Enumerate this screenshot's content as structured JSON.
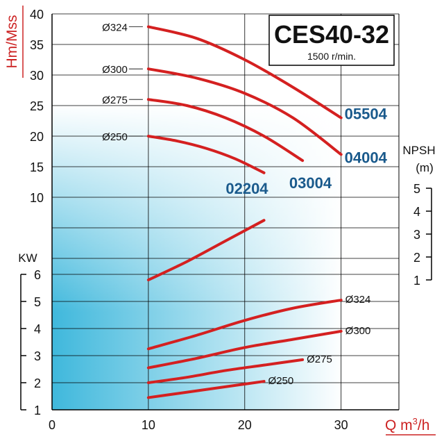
{
  "title_box": {
    "model": "CES40-32",
    "speed": "1500 r/min."
  },
  "chart_data": {
    "type": "line",
    "x_axis": {
      "label": "Q m³/h",
      "label_main": "Q m",
      "label_sup": "3",
      "label_tail": "/h",
      "range": [
        0,
        36
      ],
      "ticks": [
        "0",
        "10",
        "20",
        "30"
      ]
    },
    "head_axis": {
      "label": "Hm/Mss",
      "range": [
        0,
        40
      ],
      "ticks": [
        "40",
        "35",
        "30",
        "25",
        "20",
        "15",
        "10"
      ]
    },
    "power_axis": {
      "label": "KW",
      "range": [
        1,
        6
      ],
      "ticks": [
        "6",
        "5",
        "4",
        "3",
        "2",
        "1"
      ]
    },
    "npsh_axis": {
      "label_line1": "NPSH",
      "label_line2": "(m)",
      "range": [
        1,
        5
      ],
      "ticks": [
        "5",
        "4",
        "3",
        "2",
        "1"
      ]
    },
    "head_curves": [
      {
        "impeller": "Ø324",
        "model": "05504",
        "x": [
          10,
          15,
          20,
          25,
          30
        ],
        "y": [
          37.9,
          36.0,
          32.5,
          28.0,
          23.0
        ]
      },
      {
        "impeller": "Ø300",
        "model": "04004",
        "x": [
          10,
          15,
          20,
          25,
          30
        ],
        "y": [
          31.0,
          29.5,
          27.0,
          23.0,
          17.0
        ]
      },
      {
        "impeller": "Ø275",
        "model": "03004",
        "x": [
          10,
          14,
          18,
          22,
          26
        ],
        "y": [
          26.0,
          25.0,
          23.0,
          20.0,
          16.0
        ]
      },
      {
        "impeller": "Ø250",
        "model": "02204",
        "x": [
          10,
          13,
          16,
          19,
          22
        ],
        "y": [
          20.0,
          19.2,
          18.0,
          16.3,
          14.0
        ]
      }
    ],
    "npsh_curve": {
      "x": [
        10,
        14,
        18,
        22
      ],
      "y": [
        1.0,
        1.8,
        2.7,
        3.6
      ]
    },
    "power_curves": [
      {
        "impeller": "Ø324",
        "x": [
          10,
          15,
          20,
          25,
          30
        ],
        "y": [
          3.25,
          3.75,
          4.3,
          4.75,
          5.05
        ]
      },
      {
        "impeller": "Ø300",
        "x": [
          10,
          15,
          20,
          25,
          30
        ],
        "y": [
          2.55,
          2.9,
          3.3,
          3.6,
          3.9
        ]
      },
      {
        "impeller": "Ø275",
        "x": [
          10,
          14,
          18,
          22,
          26
        ],
        "y": [
          2.0,
          2.2,
          2.45,
          2.65,
          2.85
        ]
      },
      {
        "impeller": "Ø250",
        "x": [
          10,
          13,
          16,
          19,
          22
        ],
        "y": [
          1.45,
          1.6,
          1.75,
          1.9,
          2.05
        ]
      }
    ],
    "colors": {
      "curve": "#d42020",
      "axis_label": "#cc2222",
      "model_label": "#1a5a8c",
      "gradient_light": "#ffffff",
      "gradient_dark": "#3fb8dc",
      "grid": "#000000"
    },
    "grid": true
  }
}
